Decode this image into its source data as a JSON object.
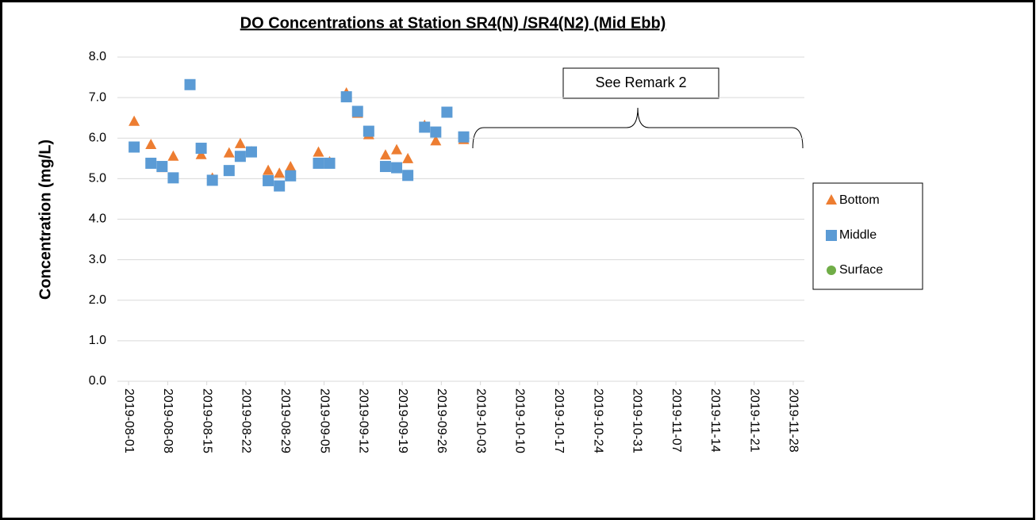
{
  "chart_data": {
    "type": "scatter",
    "title": "DO Concentrations at Station SR4(N) /SR4(N2) (Mid Ebb)",
    "y_label": "Concentration (mg/L)",
    "annotation": "See Remark 2",
    "x": [
      "2019-08-02",
      "2019-08-05",
      "2019-08-07",
      "2019-08-09",
      "2019-08-12",
      "2019-08-14",
      "2019-08-16",
      "2019-08-19",
      "2019-08-21",
      "2019-08-23",
      "2019-08-26",
      "2019-08-28",
      "2019-08-30",
      "2019-09-04",
      "2019-09-06",
      "2019-09-09",
      "2019-09-11",
      "2019-09-13",
      "2019-09-16",
      "2019-09-18",
      "2019-09-20",
      "2019-09-23",
      "2019-09-25",
      "2019-09-27",
      "2019-09-30"
    ],
    "series": [
      {
        "name": "Bottom",
        "color": "#ed7d31",
        "marker": "triangle",
        "values": [
          6.4,
          5.83,
          5.26,
          5.54,
          7.3,
          5.58,
          5.0,
          5.62,
          5.85,
          5.65,
          5.19,
          5.12,
          5.28,
          5.64,
          5.4,
          7.1,
          6.6,
          6.07,
          5.57,
          5.7,
          5.48,
          6.3,
          5.92,
          6.62,
          5.95
        ]
      },
      {
        "name": "Middle",
        "color": "#5b9bd5",
        "marker": "square",
        "values": [
          5.78,
          5.38,
          5.3,
          5.02,
          7.32,
          5.75,
          4.96,
          5.2,
          5.55,
          5.66,
          4.95,
          4.82,
          5.07,
          5.38,
          5.38,
          7.02,
          6.66,
          6.17,
          5.3,
          5.27,
          5.08,
          6.27,
          6.15,
          6.64,
          6.03
        ]
      },
      {
        "name": "Surface",
        "color": "#70ad47",
        "marker": "circle",
        "values": [
          null,
          null,
          null,
          null,
          null,
          null,
          null,
          null,
          null,
          null,
          null,
          null,
          null,
          null,
          null,
          null,
          null,
          null,
          null,
          null,
          null,
          null,
          null,
          null,
          null
        ]
      }
    ],
    "xlim": [
      "2019-07-30",
      "2019-11-30"
    ],
    "xticks": [
      "2019-08-01",
      "2019-08-08",
      "2019-08-15",
      "2019-08-22",
      "2019-08-29",
      "2019-09-05",
      "2019-09-12",
      "2019-09-19",
      "2019-09-26",
      "2019-10-03",
      "2019-10-10",
      "2019-10-17",
      "2019-10-24",
      "2019-10-31",
      "2019-11-07",
      "2019-11-14",
      "2019-11-21",
      "2019-11-28"
    ],
    "ylim": [
      0,
      8
    ],
    "yticks": [
      {
        "value": 0,
        "label": "0.0"
      },
      {
        "value": 1,
        "label": "1.0"
      },
      {
        "value": 2,
        "label": "2.0"
      },
      {
        "value": 3,
        "label": "3.0"
      },
      {
        "value": 4,
        "label": "4.0"
      },
      {
        "value": 5,
        "label": "5.0"
      },
      {
        "value": 6,
        "label": "6.0"
      },
      {
        "value": 7,
        "label": "7.0"
      },
      {
        "value": 8,
        "label": "8.0"
      }
    ],
    "grid": true
  }
}
